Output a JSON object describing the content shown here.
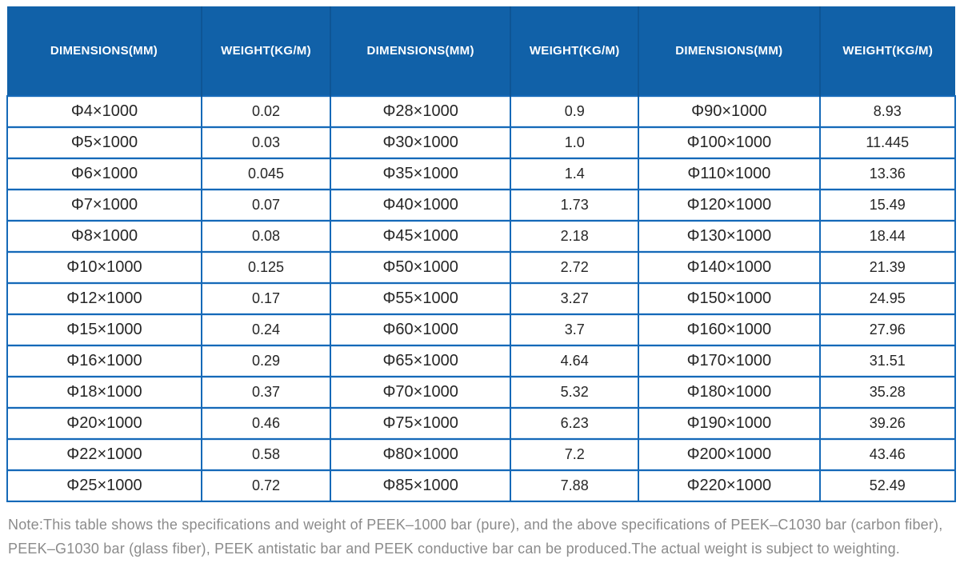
{
  "table": {
    "header": {
      "cols": [
        "DIMENSIONS(MM)",
        "WEIGHT(KG/M)",
        "DIMENSIONS(MM)",
        "WEIGHT(KG/M)",
        "DIMENSIONS(MM)",
        "WEIGHT(KG/M)"
      ]
    },
    "rows": [
      [
        "Φ4×1000",
        "0.02",
        "Φ28×1000",
        "0.9",
        "Φ90×1000",
        "8.93"
      ],
      [
        "Φ5×1000",
        "0.03",
        "Φ30×1000",
        "1.0",
        "Φ100×1000",
        "11.445"
      ],
      [
        "Φ6×1000",
        "0.045",
        "Φ35×1000",
        "1.4",
        "Φ110×1000",
        "13.36"
      ],
      [
        "Φ7×1000",
        "0.07",
        "Φ40×1000",
        "1.73",
        "Φ120×1000",
        "15.49"
      ],
      [
        "Φ8×1000",
        "0.08",
        "Φ45×1000",
        "2.18",
        "Φ130×1000",
        "18.44"
      ],
      [
        "Φ10×1000",
        "0.125",
        "Φ50×1000",
        "2.72",
        "Φ140×1000",
        "21.39"
      ],
      [
        "Φ12×1000",
        "0.17",
        "Φ55×1000",
        "3.27",
        "Φ150×1000",
        "24.95"
      ],
      [
        "Φ15×1000",
        "0.24",
        "Φ60×1000",
        "3.7",
        "Φ160×1000",
        "27.96"
      ],
      [
        "Φ16×1000",
        "0.29",
        "Φ65×1000",
        "4.64",
        "Φ170×1000",
        "31.51"
      ],
      [
        "Φ18×1000",
        "0.37",
        "Φ70×1000",
        "5.32",
        "Φ180×1000",
        "35.28"
      ],
      [
        "Φ20×1000",
        "0.46",
        "Φ75×1000",
        "6.23",
        "Φ190×1000",
        "39.26"
      ],
      [
        "Φ22×1000",
        "0.58",
        "Φ80×1000",
        "7.2",
        "Φ200×1000",
        "43.46"
      ],
      [
        "Φ25×1000",
        "0.72",
        "Φ85×1000",
        "7.88",
        "Φ220×1000",
        "52.49"
      ]
    ]
  },
  "note": "Note:This table shows the specifications and weight of PEEK–1000 bar (pure), and the above specifications of PEEK–C1030 bar (carbon fiber), PEEK–G1030 bar (glass fiber), PEEK antistatic bar and PEEK conductive bar can be produced.The actual weight is subject to weighting.",
  "colors": {
    "header_bg": "#1161a8",
    "header_separator": "#0e5595",
    "cell_border": "#1569b8",
    "body_text": "#262626",
    "note_text": "#8b8b8b"
  }
}
